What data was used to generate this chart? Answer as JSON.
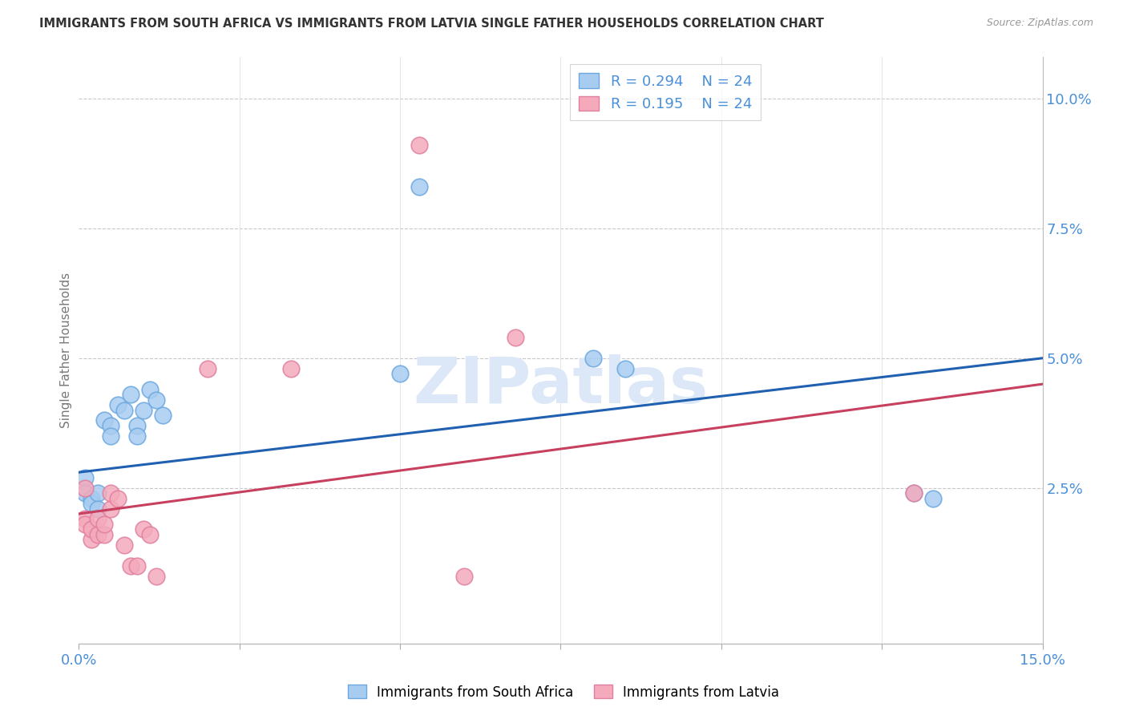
{
  "title": "IMMIGRANTS FROM SOUTH AFRICA VS IMMIGRANTS FROM LATVIA SINGLE FATHER HOUSEHOLDS CORRELATION CHART",
  "source": "Source: ZipAtlas.com",
  "ylabel": "Single Father Households",
  "xlim": [
    0.0,
    0.15
  ],
  "ylim": [
    -0.005,
    0.108
  ],
  "r_sa": 0.294,
  "n_sa": 24,
  "r_lv": 0.195,
  "n_lv": 24,
  "color_blue_fill": "#A8CCF0",
  "color_blue_edge": "#6BA8E0",
  "color_pink_fill": "#F4AABB",
  "color_pink_edge": "#E080A0",
  "color_blue_line": "#2060B0",
  "color_pink_line": "#C84060",
  "color_axis_text": "#4A90D9",
  "watermark_color": "#DCE8F8",
  "background": "#FFFFFF",
  "sa_x": [
    0.001,
    0.001,
    0.002,
    0.002,
    0.003,
    0.003,
    0.004,
    0.005,
    0.005,
    0.006,
    0.007,
    0.008,
    0.009,
    0.009,
    0.01,
    0.011,
    0.012,
    0.013,
    0.05,
    0.053,
    0.08,
    0.085,
    0.13,
    0.133
  ],
  "sa_y": [
    0.027,
    0.024,
    0.023,
    0.022,
    0.024,
    0.021,
    0.038,
    0.037,
    0.035,
    0.041,
    0.04,
    0.043,
    0.037,
    0.035,
    0.04,
    0.044,
    0.042,
    0.039,
    0.047,
    0.083,
    0.05,
    0.048,
    0.024,
    0.023
  ],
  "lv_x": [
    0.001,
    0.001,
    0.001,
    0.002,
    0.002,
    0.003,
    0.003,
    0.004,
    0.004,
    0.005,
    0.005,
    0.006,
    0.007,
    0.008,
    0.009,
    0.01,
    0.011,
    0.012,
    0.02,
    0.033,
    0.053,
    0.068,
    0.13,
    0.06
  ],
  "lv_y": [
    0.019,
    0.018,
    0.025,
    0.015,
    0.017,
    0.016,
    0.019,
    0.016,
    0.018,
    0.021,
    0.024,
    0.023,
    0.014,
    0.01,
    0.01,
    0.017,
    0.016,
    0.008,
    0.048,
    0.048,
    0.091,
    0.054,
    0.024,
    0.008
  ],
  "grid_yticks": [
    0.025,
    0.05,
    0.075,
    0.1
  ],
  "grid_xticks": [
    0.0,
    0.025,
    0.05,
    0.075,
    0.1,
    0.125,
    0.15
  ],
  "sa_line_x0": 0.0,
  "sa_line_y0": 0.028,
  "sa_line_x1": 0.15,
  "sa_line_y1": 0.05,
  "lv_line_x0": 0.0,
  "lv_line_y0": 0.02,
  "lv_line_x1": 0.15,
  "lv_line_y1": 0.045
}
